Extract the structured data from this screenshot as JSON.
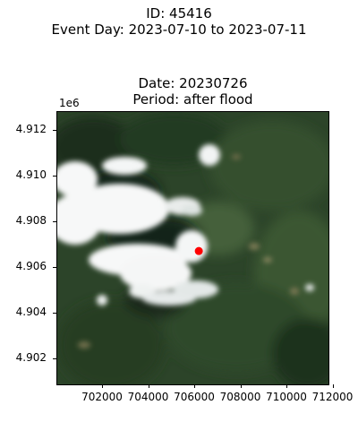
{
  "figure": {
    "suptitle_line1": "ID: 45416",
    "suptitle_line2": "Event Day: 2023-07-10 to 2023-07-11"
  },
  "axes": {
    "title_line1": "Date: 20230726",
    "title_line2": "Period: after flood",
    "y_offset_label": "1e6",
    "yticks": [
      "4.912",
      "4.910",
      "4.908",
      "4.906",
      "4.904",
      "4.902"
    ],
    "xticks": [
      "702000",
      "704000",
      "706000",
      "708000",
      "710000",
      "712000"
    ]
  },
  "colors": {
    "marker": "#ff0000",
    "vegetation_dark": "#1f3320",
    "vegetation_mid": "#3e5a34",
    "cloud": "#ffffff"
  },
  "marker_point": {
    "x": 706200,
    "y": 4906700
  }
}
